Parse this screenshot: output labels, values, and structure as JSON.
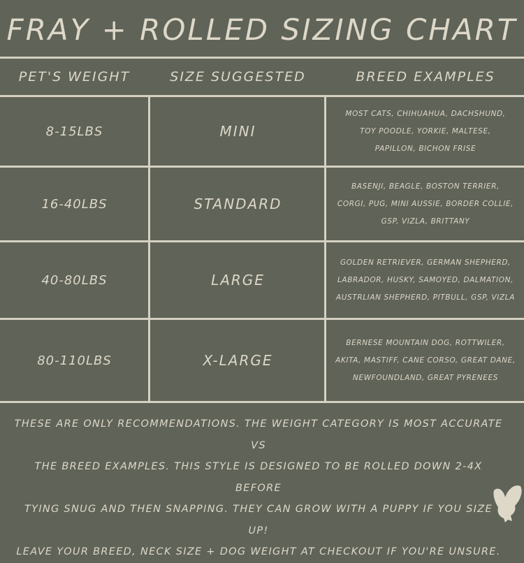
{
  "title": "Fray +  Rolled Sizing Chart",
  "headers": [
    "Pet's Weight",
    "Size Suggested",
    "Breed Examples"
  ],
  "rows": [
    {
      "weight": "8-15lbs",
      "size": "Mini",
      "breeds": [
        "Most cats, Chihuahua, Dachshund,",
        "Toy Poodle, Yorkie, Maltese,",
        "Papillon, Bichon Frise"
      ]
    },
    {
      "weight": "16-40lbs",
      "size": "Standard",
      "breeds": [
        "Basenji, Beagle, Boston Terrier,",
        "Corgi, Pug, Mini Aussie, Border Collie,",
        "GSP, Vizla, Brittany"
      ]
    },
    {
      "weight": "40-80lbs",
      "size": "Large",
      "breeds": [
        "Golden Retriever, German Shepherd,",
        "Labrador, Husky, Samoyed, Dalmation,",
        "Austrlian Shepherd, Pitbull, GSP, Vizla"
      ]
    },
    {
      "weight": "80-110lbs",
      "size": "X-Large",
      "breeds": [
        "Bernese Mountain Dog, Rottwiler,",
        "Akita, Mastiff, Cane Corso, Great Dane,",
        "Newfoundland, Great Pyrenees"
      ]
    }
  ],
  "footer": [
    "These are only recommendations. The weight category is most accurate vs",
    "the breed examples. This style is designed to be rolled down 2-4x before",
    "tying snug and then snapping. They can grow with a puppy if you size up!",
    "Leave your breed, neck size +  dog weight at checkout if you're unsure."
  ],
  "colors": {
    "background": "#5f6358",
    "text": "#ddd8c8",
    "lines": "#d6d1c1"
  },
  "logo_icon": "owl-icon"
}
